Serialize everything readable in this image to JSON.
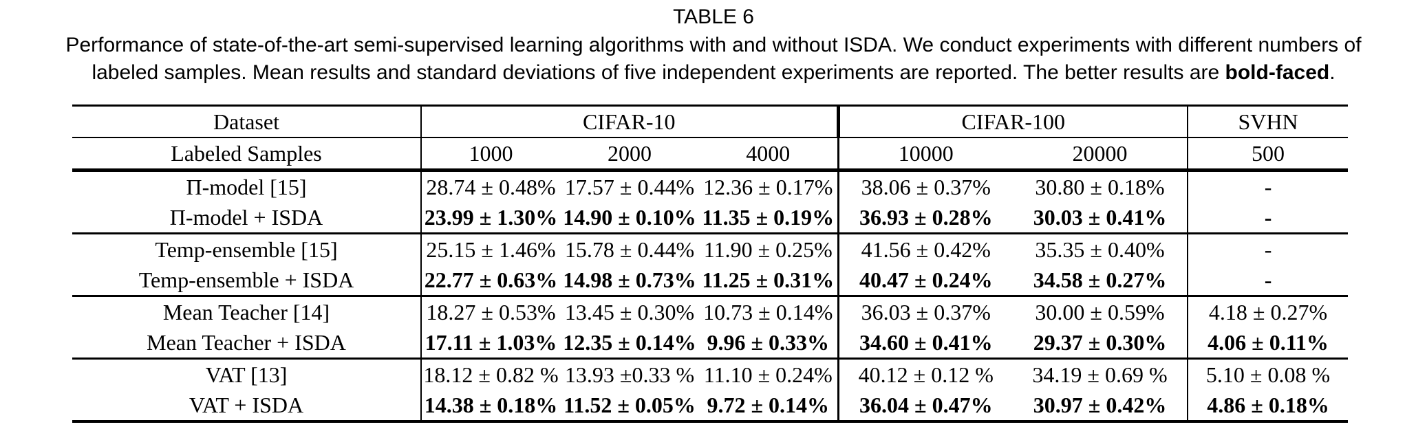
{
  "caption": {
    "title": "TABLE 6",
    "line1": "Performance of state-of-the-art semi-supervised learning algorithms with and without ISDA. We conduct experiments with different numbers of",
    "line2": "labeled samples. Mean results and standard deviations of five independent experiments are reported. The better results are ",
    "bold_word": "bold-faced",
    "after": "."
  },
  "table": {
    "corner_label": "Dataset",
    "row_header_label": "Labeled Samples",
    "col_groups": [
      {
        "label": "CIFAR-10",
        "sub_labels": [
          "1000",
          "2000",
          "4000"
        ]
      },
      {
        "label": "CIFAR-100",
        "sub_labels": [
          "10000",
          "20000"
        ]
      },
      {
        "label": "SVHN",
        "sub_labels": [
          "500"
        ]
      }
    ],
    "row_groups": [
      {
        "rows": [
          {
            "method": "Π-model [15]",
            "bold_values": false,
            "values": [
              "28.74 ± 0.48%",
              "17.57 ± 0.44%",
              "12.36 ± 0.17%",
              "38.06 ± 0.37%",
              "30.80 ± 0.18%",
              "-"
            ]
          },
          {
            "method": "Π-model + ISDA",
            "bold_values": true,
            "values": [
              "23.99 ± 1.30%",
              "14.90 ± 0.10%",
              "11.35 ± 0.19%",
              "36.93 ± 0.28%",
              "30.03 ± 0.41%",
              "-"
            ]
          }
        ]
      },
      {
        "rows": [
          {
            "method": "Temp-ensemble [15]",
            "bold_values": false,
            "values": [
              "25.15 ± 1.46%",
              "15.78 ± 0.44%",
              "11.90 ± 0.25%",
              "41.56 ± 0.42%",
              "35.35 ± 0.40%",
              "-"
            ]
          },
          {
            "method": "Temp-ensemble + ISDA",
            "bold_values": true,
            "values": [
              "22.77 ± 0.63%",
              "14.98 ± 0.73%",
              "11.25 ± 0.31%",
              "40.47 ± 0.24%",
              "34.58 ± 0.27%",
              "-"
            ]
          }
        ]
      },
      {
        "rows": [
          {
            "method": "Mean Teacher [14]",
            "bold_values": false,
            "values": [
              "18.27 ± 0.53%",
              "13.45 ± 0.30%",
              "10.73 ± 0.14%",
              "36.03 ± 0.37%",
              "30.00 ± 0.59%",
              "4.18 ± 0.27%"
            ]
          },
          {
            "method": "Mean Teacher + ISDA",
            "bold_values": true,
            "values": [
              "17.11 ± 1.03%",
              "12.35 ± 0.14%",
              "9.96 ± 0.33%",
              "34.60 ± 0.41%",
              "29.37 ± 0.30%",
              "4.06 ± 0.11%"
            ]
          }
        ]
      },
      {
        "rows": [
          {
            "method": "VAT [13]",
            "bold_values": false,
            "values": [
              "18.12 ± 0.82 %",
              "13.93 ±0.33 %",
              "11.10 ± 0.24%",
              "40.12 ± 0.12 %",
              "34.19 ± 0.69 %",
              "5.10 ± 0.08 %"
            ]
          },
          {
            "method": "VAT + ISDA",
            "bold_values": true,
            "values": [
              "14.38 ± 0.18%",
              "11.52 ± 0.05%",
              "9.72 ± 0.14%",
              "36.04 ± 0.47%",
              "30.97 ± 0.42%",
              "4.86 ± 0.18%"
            ]
          }
        ]
      }
    ]
  },
  "colors": {
    "text": "#000000",
    "background": "#ffffff"
  }
}
